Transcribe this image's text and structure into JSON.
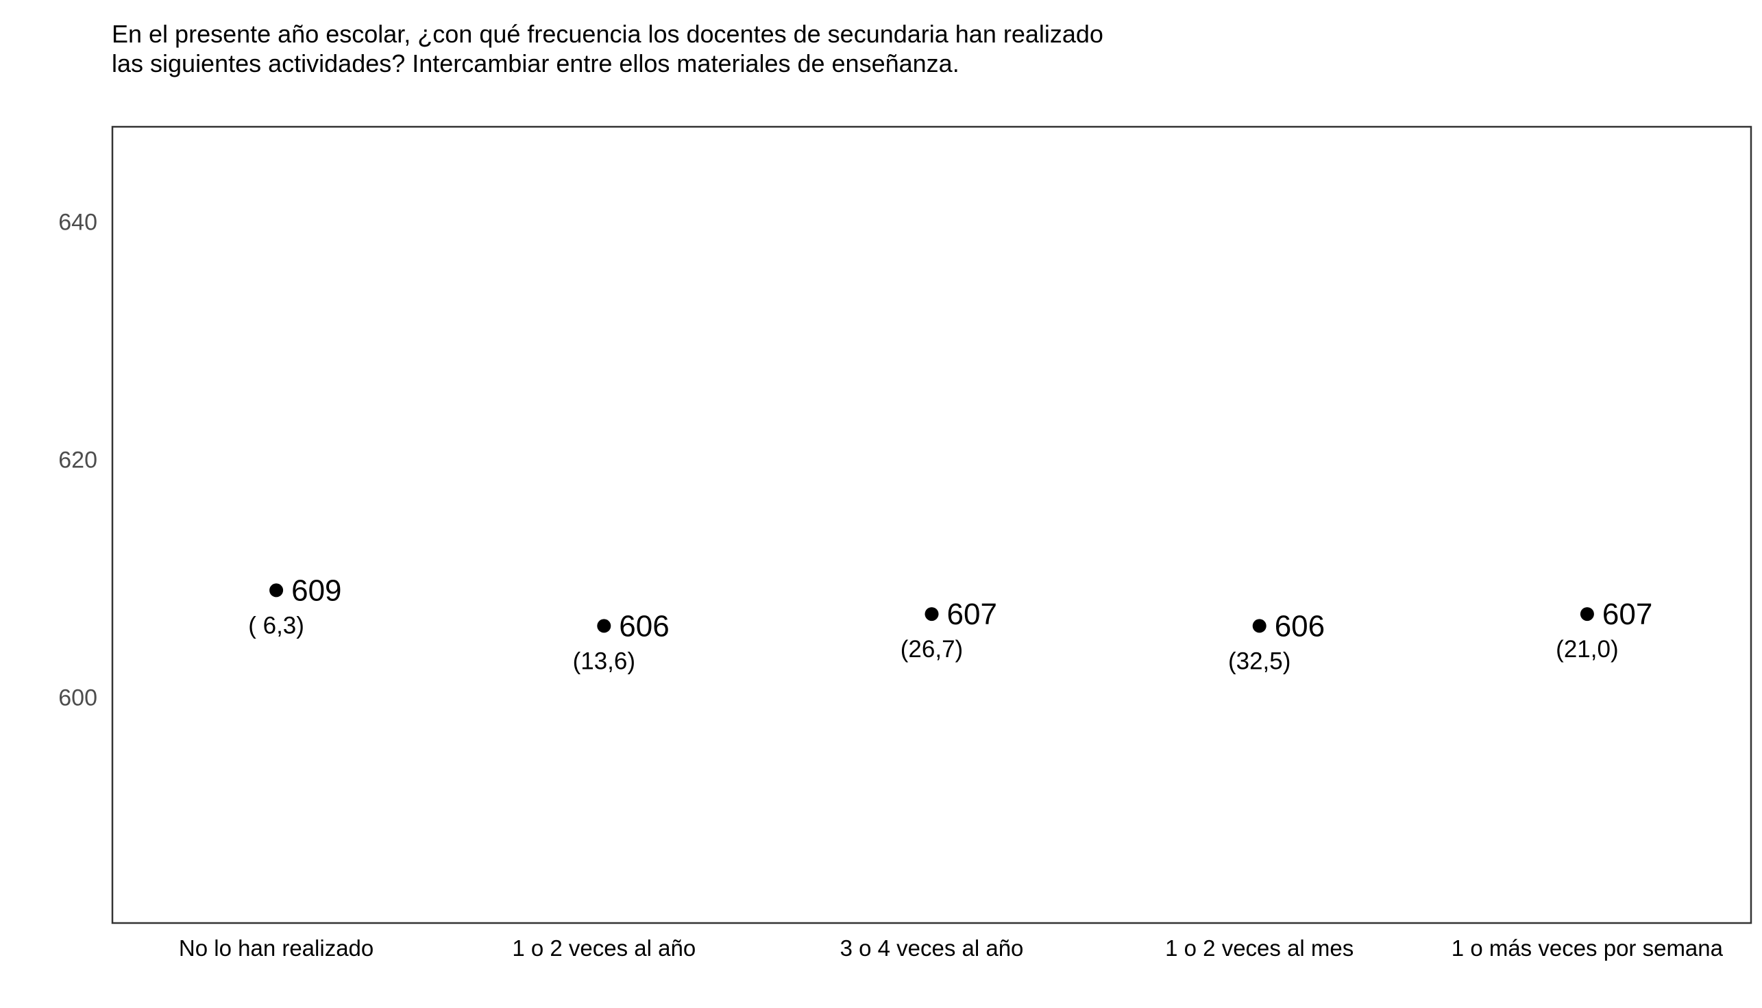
{
  "chart_data": {
    "type": "scatter",
    "title": "En el presente año escolar, ¿con qué frecuencia los docentes de secundaria han realizado las siguientes actividades? Intercambiar entre ellos materiales de enseñanza.",
    "categories": [
      "No lo han realizado",
      "1 o 2 veces al año",
      "3 o 4 veces al año",
      "1 o 2 veces al mes",
      "1 o más veces por semana"
    ],
    "values": [
      609,
      606,
      607,
      606,
      607
    ],
    "value_labels": [
      "609",
      "606",
      "607",
      "606",
      "607"
    ],
    "secondary_labels": [
      "( 6,3)",
      "(13,6)",
      "(26,7)",
      "(32,5)",
      "(21,0)"
    ],
    "y_ticks": [
      600,
      620,
      640
    ],
    "y_tick_labels": [
      "600",
      "620",
      "640"
    ],
    "ylim": [
      581,
      648
    ],
    "xlabel": "",
    "ylabel": "",
    "grid": false,
    "legend": "none",
    "colors": {
      "point": "#000000",
      "frame": "#333333",
      "tick_text": "#4d4d4d",
      "text": "#000000",
      "background": "#ffffff"
    }
  }
}
